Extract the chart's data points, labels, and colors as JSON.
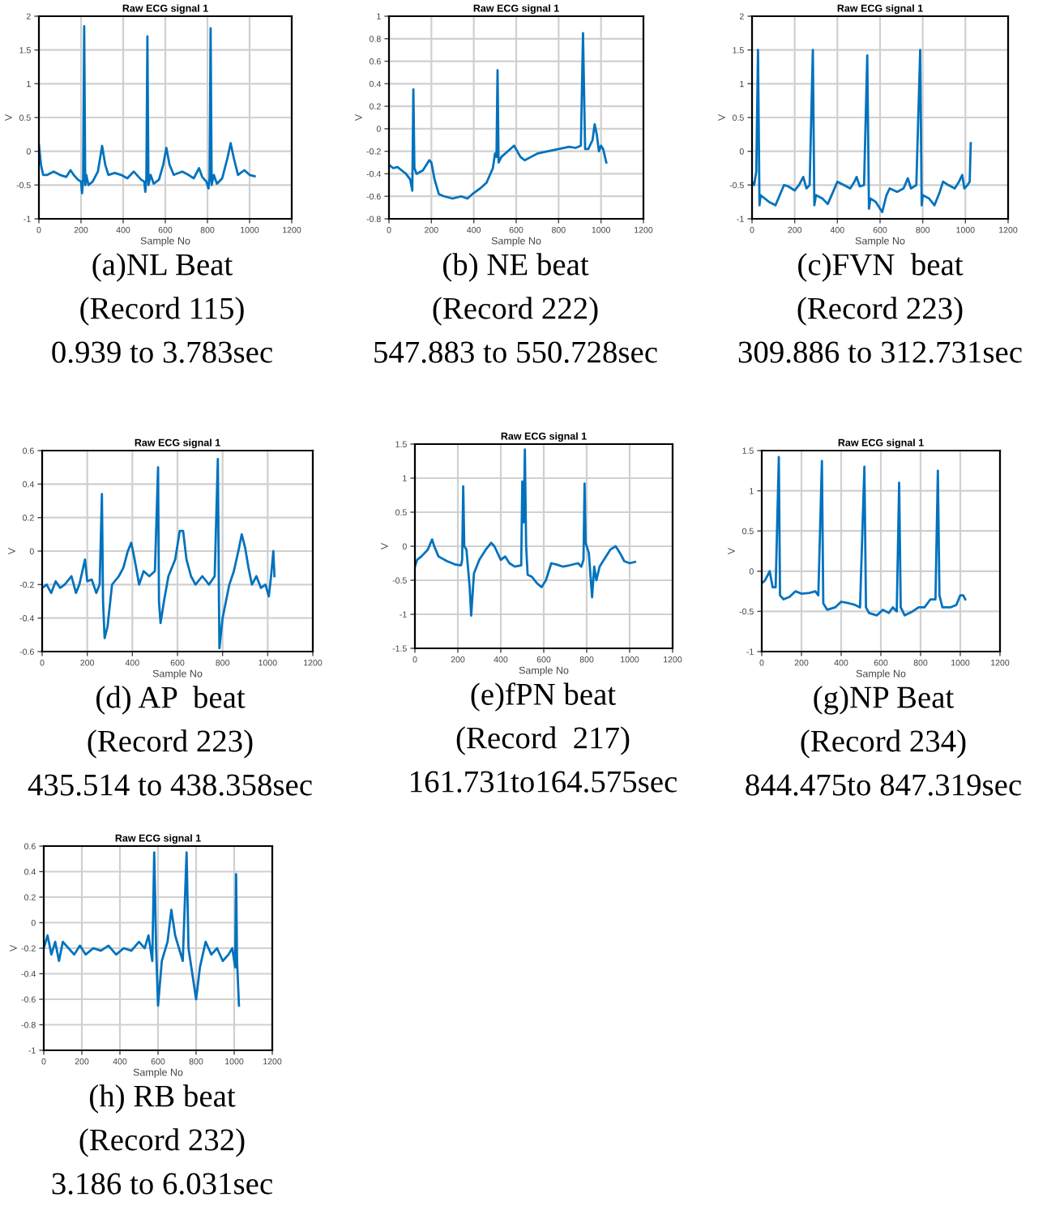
{
  "chart_data": [
    {
      "type": "line",
      "title": "Raw ECG signal 1",
      "xlabel": "Sample No",
      "ylabel": "V",
      "annotations": [
        "(a)NL Beat",
        "(Record 115)",
        "0.939 to 3.783sec"
      ],
      "xlim": [
        0,
        1200
      ],
      "xticks": [
        0,
        200,
        400,
        600,
        800,
        1000,
        1200
      ],
      "ylim": [
        -1,
        2
      ],
      "yticks": [
        -1,
        -0.5,
        0,
        0.5,
        1,
        1.5,
        2
      ],
      "grid": true,
      "x": [
        0,
        10,
        20,
        40,
        70,
        100,
        130,
        150,
        165,
        185,
        200,
        205,
        210,
        215,
        220,
        225,
        235,
        255,
        280,
        300,
        315,
        330,
        360,
        390,
        420,
        450,
        465,
        485,
        500,
        505,
        510,
        515,
        520,
        530,
        545,
        570,
        590,
        605,
        620,
        640,
        680,
        710,
        735,
        760,
        775,
        795,
        805,
        810,
        815,
        820,
        830,
        845,
        870,
        895,
        910,
        925,
        945,
        975,
        1000,
        1024
      ],
      "series": [
        {
          "color": "#0072bd",
          "values": [
            0.1,
            -0.2,
            -0.35,
            -0.35,
            -0.3,
            -0.35,
            -0.38,
            -0.28,
            -0.35,
            -0.42,
            -0.45,
            -0.62,
            -0.4,
            1.85,
            -0.5,
            -0.35,
            -0.5,
            -0.45,
            -0.3,
            0.08,
            -0.2,
            -0.35,
            -0.32,
            -0.35,
            -0.4,
            -0.3,
            -0.35,
            -0.42,
            -0.45,
            -0.6,
            -0.4,
            1.7,
            -0.5,
            -0.35,
            -0.48,
            -0.42,
            -0.2,
            0.05,
            -0.2,
            -0.35,
            -0.3,
            -0.35,
            -0.4,
            -0.25,
            -0.38,
            -0.45,
            -0.55,
            -0.4,
            1.82,
            -0.5,
            -0.35,
            -0.48,
            -0.4,
            -0.1,
            0.12,
            -0.1,
            -0.35,
            -0.28,
            -0.35,
            -0.37
          ]
        }
      ]
    },
    {
      "type": "line",
      "title": "Raw ECG signal 1",
      "xlabel": "Sample No",
      "ylabel": "V",
      "annotations": [
        "(b) NE beat",
        "(Record 222)",
        "547.883 to 550.728sec"
      ],
      "xlim": [
        0,
        1200
      ],
      "xticks": [
        0,
        200,
        400,
        600,
        800,
        1000,
        1200
      ],
      "ylim": [
        -0.8,
        1
      ],
      "yticks": [
        -0.8,
        -0.6,
        -0.4,
        -0.2,
        0,
        0.2,
        0.4,
        0.6,
        0.8,
        1
      ],
      "grid": true,
      "x": [
        0,
        20,
        40,
        60,
        80,
        100,
        110,
        115,
        120,
        130,
        160,
        190,
        200,
        215,
        235,
        260,
        300,
        340,
        370,
        400,
        430,
        460,
        490,
        500,
        507,
        512,
        517,
        530,
        560,
        590,
        620,
        640,
        670,
        700,
        750,
        800,
        850,
        880,
        905,
        915,
        925,
        940,
        960,
        970,
        980,
        990,
        1000,
        1010,
        1025
      ],
      "series": [
        {
          "color": "#0072bd",
          "values": [
            -0.32,
            -0.35,
            -0.34,
            -0.37,
            -0.4,
            -0.45,
            -0.55,
            0.35,
            -0.35,
            -0.4,
            -0.37,
            -0.28,
            -0.3,
            -0.45,
            -0.58,
            -0.6,
            -0.62,
            -0.6,
            -0.62,
            -0.57,
            -0.53,
            -0.48,
            -0.35,
            -0.22,
            -0.25,
            0.52,
            -0.3,
            -0.25,
            -0.2,
            -0.15,
            -0.25,
            -0.28,
            -0.25,
            -0.22,
            -0.2,
            -0.18,
            -0.16,
            -0.17,
            -0.15,
            0.85,
            -0.18,
            -0.18,
            -0.1,
            0.04,
            -0.05,
            -0.2,
            -0.15,
            -0.18,
            -0.3
          ]
        }
      ]
    },
    {
      "type": "line",
      "title": "Raw ECG signal 1",
      "xlabel": "Sample No",
      "ylabel": "V",
      "annotations": [
        "(c)FVN  beat",
        "(Record 223)",
        "309.886 to 312.731sec"
      ],
      "xlim": [
        0,
        1200
      ],
      "xticks": [
        0,
        200,
        400,
        600,
        800,
        1000,
        1200
      ],
      "ylim": [
        -1,
        2
      ],
      "yticks": [
        -1,
        -0.5,
        0,
        0.5,
        1,
        1.5,
        2
      ],
      "grid": true,
      "x": [
        0,
        10,
        20,
        28,
        35,
        40,
        60,
        80,
        110,
        130,
        150,
        170,
        200,
        220,
        240,
        255,
        270,
        285,
        292,
        300,
        330,
        355,
        380,
        400,
        430,
        460,
        480,
        490,
        505,
        525,
        540,
        548,
        555,
        580,
        610,
        630,
        645,
        680,
        710,
        730,
        745,
        770,
        788,
        795,
        800,
        830,
        855,
        880,
        895,
        920,
        950,
        970,
        985,
        995,
        1010,
        1020,
        1025
      ],
      "series": [
        {
          "color": "#0072bd",
          "values": [
            -0.45,
            -0.5,
            -0.3,
            1.5,
            -0.8,
            -0.65,
            -0.7,
            -0.75,
            -0.8,
            -0.65,
            -0.5,
            -0.52,
            -0.58,
            -0.5,
            -0.38,
            -0.55,
            -0.5,
            1.5,
            -0.8,
            -0.65,
            -0.7,
            -0.78,
            -0.6,
            -0.45,
            -0.5,
            -0.55,
            -0.45,
            -0.38,
            -0.52,
            -0.5,
            1.42,
            -0.85,
            -0.7,
            -0.75,
            -0.9,
            -0.65,
            -0.55,
            -0.6,
            -0.55,
            -0.4,
            -0.55,
            -0.5,
            1.5,
            -0.8,
            -0.65,
            -0.7,
            -0.8,
            -0.6,
            -0.45,
            -0.5,
            -0.55,
            -0.45,
            -0.35,
            -0.55,
            -0.5,
            -0.45,
            0.12
          ]
        }
      ]
    },
    {
      "type": "line",
      "title": "Raw ECG signal 1",
      "xlabel": "Sample No",
      "ylabel": "V",
      "annotations": [
        "(d) AP  beat",
        "(Record 223)",
        "435.514 to 438.358sec"
      ],
      "xlim": [
        0,
        1200
      ],
      "xticks": [
        0,
        200,
        400,
        600,
        800,
        1000,
        1200
      ],
      "ylim": [
        -0.6,
        0.6
      ],
      "yticks": [
        -0.6,
        -0.4,
        -0.2,
        0,
        0.2,
        0.4,
        0.6
      ],
      "grid": true,
      "x": [
        0,
        20,
        40,
        60,
        80,
        100,
        130,
        150,
        165,
        190,
        200,
        220,
        240,
        255,
        265,
        270,
        277,
        290,
        310,
        340,
        360,
        380,
        395,
        410,
        430,
        450,
        475,
        500,
        514,
        518,
        525,
        540,
        560,
        590,
        610,
        625,
        640,
        660,
        680,
        710,
        740,
        765,
        779,
        784,
        786,
        800,
        830,
        850,
        870,
        885,
        900,
        915,
        930,
        950,
        970,
        990,
        1005,
        1015,
        1025,
        1030
      ],
      "series": [
        {
          "color": "#0072bd",
          "values": [
            -0.22,
            -0.2,
            -0.25,
            -0.18,
            -0.22,
            -0.2,
            -0.15,
            -0.25,
            -0.2,
            -0.05,
            -0.18,
            -0.17,
            -0.25,
            -0.2,
            0.34,
            -0.3,
            -0.52,
            -0.45,
            -0.2,
            -0.15,
            -0.1,
            0.0,
            0.05,
            -0.05,
            -0.2,
            -0.12,
            -0.15,
            -0.12,
            0.5,
            -0.3,
            -0.43,
            -0.3,
            -0.15,
            -0.05,
            0.12,
            0.12,
            -0.05,
            -0.15,
            -0.2,
            -0.15,
            -0.2,
            -0.15,
            0.55,
            -0.3,
            -0.58,
            -0.4,
            -0.2,
            -0.12,
            0.0,
            0.1,
            0.02,
            -0.1,
            -0.2,
            -0.15,
            -0.22,
            -0.2,
            -0.27,
            -0.15,
            0.0,
            -0.15
          ]
        }
      ]
    },
    {
      "type": "line",
      "title": "Raw ECG signal 1",
      "xlabel": "Sample No",
      "ylabel": "V",
      "annotations": [
        "(e)fPN beat",
        "(Record  217)",
        "161.731to164.575sec"
      ],
      "xlim": [
        0,
        1200
      ],
      "xticks": [
        0,
        200,
        400,
        600,
        800,
        1000,
        1200
      ],
      "ylim": [
        -1.5,
        1.5
      ],
      "yticks": [
        -1.5,
        -1,
        -0.5,
        0,
        0.5,
        1,
        1.5
      ],
      "grid": true,
      "x": [
        0,
        10,
        30,
        60,
        80,
        90,
        110,
        150,
        190,
        215,
        220,
        225,
        230,
        240,
        255,
        262,
        275,
        300,
        330,
        355,
        370,
        400,
        420,
        440,
        465,
        495,
        500,
        507,
        512,
        518,
        525,
        545,
        570,
        590,
        610,
        635,
        660,
        690,
        720,
        760,
        775,
        785,
        790,
        795,
        810,
        825,
        835,
        845,
        860,
        880,
        910,
        935,
        955,
        975,
        1000,
        1025
      ],
      "series": [
        {
          "color": "#0072bd",
          "values": [
            -0.3,
            -0.2,
            -0.15,
            -0.05,
            0.1,
            0.0,
            -0.15,
            -0.22,
            -0.27,
            -0.28,
            -0.2,
            0.88,
            0.0,
            -0.05,
            -0.6,
            -1.02,
            -0.4,
            -0.2,
            -0.05,
            0.05,
            0.0,
            -0.2,
            -0.15,
            -0.25,
            -0.3,
            -0.28,
            0.95,
            0.35,
            1.42,
            0.0,
            -0.42,
            -0.45,
            -0.55,
            -0.6,
            -0.5,
            -0.25,
            -0.27,
            -0.3,
            -0.28,
            -0.25,
            -0.3,
            -0.2,
            0.92,
            0.05,
            -0.1,
            -0.75,
            -0.3,
            -0.5,
            -0.3,
            -0.2,
            -0.05,
            0.0,
            -0.1,
            -0.22,
            -0.25,
            -0.23
          ]
        }
      ]
    },
    {
      "type": "line",
      "title": "Raw ECG signal 1",
      "xlabel": "Sample No",
      "ylabel": "V",
      "annotations": [
        "(g)NP Beat",
        "(Record 234)",
        "844.475to 847.319sec"
      ],
      "xlim": [
        0,
        1200
      ],
      "xticks": [
        0,
        200,
        400,
        600,
        800,
        1000,
        1200
      ],
      "ylim": [
        -1,
        1.5
      ],
      "yticks": [
        -1,
        -0.5,
        0,
        0.5,
        1,
        1.5
      ],
      "grid": true,
      "x": [
        0,
        15,
        30,
        40,
        55,
        70,
        86,
        92,
        110,
        140,
        170,
        200,
        240,
        270,
        285,
        303,
        310,
        330,
        370,
        400,
        440,
        470,
        495,
        517,
        525,
        540,
        580,
        610,
        640,
        660,
        680,
        692,
        700,
        720,
        760,
        790,
        820,
        850,
        875,
        887,
        895,
        910,
        950,
        980,
        1000,
        1015,
        1025
      ],
      "series": [
        {
          "color": "#0072bd",
          "values": [
            -0.15,
            -0.12,
            -0.05,
            0.0,
            -0.2,
            -0.2,
            1.42,
            -0.3,
            -0.35,
            -0.32,
            -0.25,
            -0.28,
            -0.27,
            -0.25,
            -0.3,
            1.37,
            -0.4,
            -0.48,
            -0.45,
            -0.38,
            -0.4,
            -0.42,
            -0.45,
            1.3,
            -0.45,
            -0.52,
            -0.55,
            -0.48,
            -0.52,
            -0.45,
            -0.5,
            1.1,
            -0.45,
            -0.55,
            -0.5,
            -0.45,
            -0.45,
            -0.35,
            -0.35,
            1.25,
            -0.3,
            -0.45,
            -0.45,
            -0.42,
            -0.3,
            -0.3,
            -0.35
          ]
        }
      ]
    },
    {
      "type": "line",
      "title": "Raw ECG signal 1",
      "xlabel": "Sample No",
      "ylabel": "V",
      "annotations": [
        "(h) RB beat",
        "(Record 232)",
        "3.186 to 6.031sec"
      ],
      "xlim": [
        0,
        1200
      ],
      "xticks": [
        0,
        200,
        400,
        600,
        800,
        1000,
        1200
      ],
      "ylim": [
        -1,
        0.6
      ],
      "yticks": [
        -1,
        -0.8,
        -0.6,
        -0.4,
        -0.2,
        0,
        0.2,
        0.4,
        0.6
      ],
      "grid": true,
      "x": [
        0,
        20,
        40,
        60,
        80,
        100,
        130,
        160,
        190,
        220,
        260,
        300,
        340,
        380,
        420,
        460,
        500,
        530,
        550,
        570,
        580,
        590,
        600,
        620,
        650,
        670,
        690,
        710,
        730,
        750,
        760,
        780,
        800,
        820,
        850,
        880,
        910,
        940,
        970,
        990,
        1005,
        1010,
        1015,
        1025
      ],
      "series": [
        {
          "color": "#0072bd",
          "values": [
            -0.2,
            -0.1,
            -0.25,
            -0.15,
            -0.3,
            -0.15,
            -0.2,
            -0.25,
            -0.18,
            -0.25,
            -0.2,
            -0.22,
            -0.18,
            -0.25,
            -0.2,
            -0.22,
            -0.15,
            -0.2,
            -0.1,
            -0.3,
            0.55,
            -0.2,
            -0.65,
            -0.3,
            -0.15,
            0.1,
            -0.1,
            -0.2,
            -0.3,
            0.55,
            -0.2,
            -0.4,
            -0.6,
            -0.35,
            -0.15,
            -0.25,
            -0.2,
            -0.3,
            -0.25,
            -0.2,
            -0.35,
            0.38,
            -0.3,
            -0.65
          ]
        }
      ]
    }
  ]
}
